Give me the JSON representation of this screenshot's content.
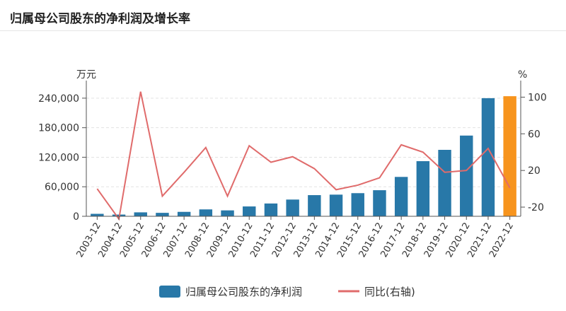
{
  "header": {
    "title": "归属母公司股东的净利润及增长率"
  },
  "chart_data": {
    "type": "bar",
    "left_unit": "万元",
    "right_unit": "%",
    "categories": [
      "2003-12",
      "2004-12",
      "2005-12",
      "2006-12",
      "2007-12",
      "2008-12",
      "2009-12",
      "2010-12",
      "2011-12",
      "2012-12",
      "2013-12",
      "2014-12",
      "2015-12",
      "2016-12",
      "2017-12",
      "2018-12",
      "2019-12",
      "2020-12",
      "2021-12",
      "2022-12"
    ],
    "left_axis": {
      "range": [
        0,
        270000
      ],
      "ticks": [
        0,
        60000,
        120000,
        180000,
        240000
      ],
      "tick_labels": [
        "0",
        "60,000",
        "120,000",
        "180,000",
        "240,000"
      ]
    },
    "right_axis": {
      "range": [
        -30,
        115
      ],
      "ticks": [
        -20,
        20,
        60,
        100
      ],
      "tick_labels": [
        "-20",
        "20",
        "60",
        "100"
      ]
    },
    "series": [
      {
        "name": "归属母公司股东的净利润",
        "type": "bar",
        "color": "#2878a8",
        "highlight_color": "#f7941d",
        "highlight_index": 19,
        "values": [
          5000,
          3500,
          8000,
          7000,
          9000,
          14000,
          12000,
          20000,
          26000,
          34000,
          43000,
          44000,
          47000,
          53000,
          80000,
          112000,
          135000,
          164000,
          240000,
          244000
        ]
      },
      {
        "name": "同比(右轴)",
        "type": "line",
        "axis": "right",
        "color": "#e06b6b",
        "values": [
          0,
          -33,
          106,
          -8,
          18,
          45,
          -8,
          47,
          29,
          35,
          22,
          -1,
          4,
          12,
          48,
          40,
          18,
          20,
          44,
          1
        ]
      }
    ],
    "legend_position": "bottom",
    "grid": true
  }
}
